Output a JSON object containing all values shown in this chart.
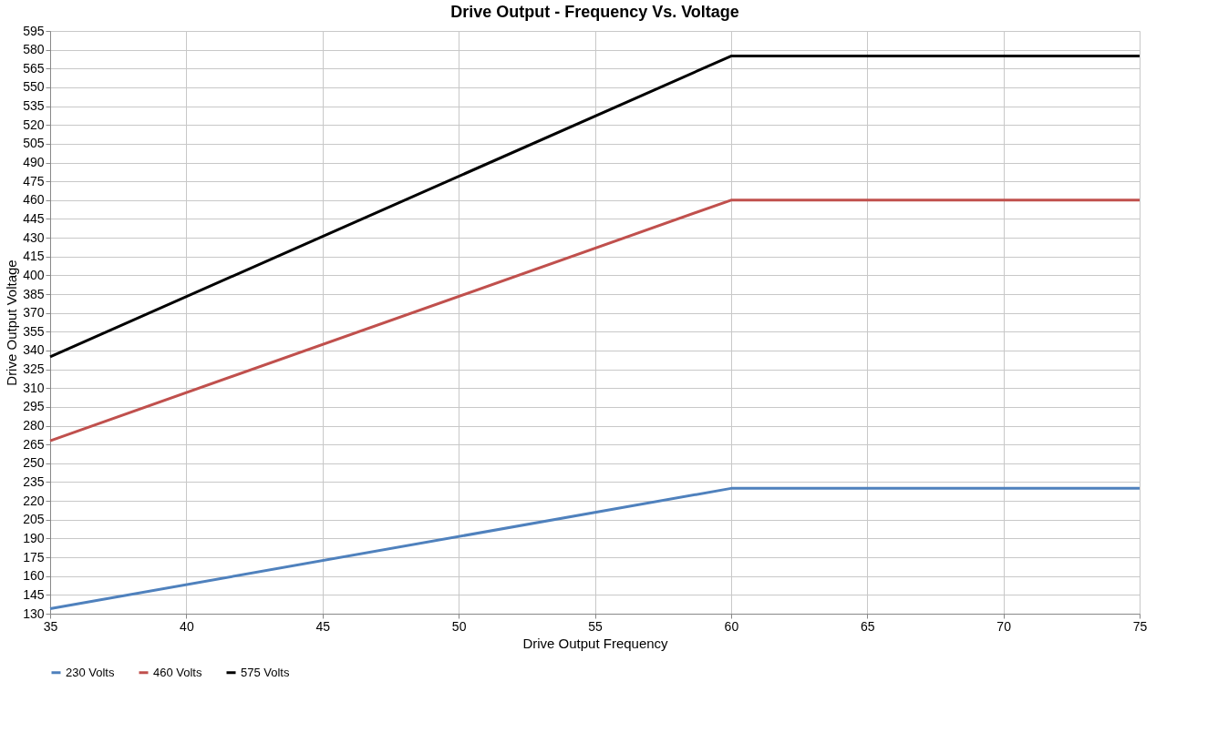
{
  "chart_data": {
    "type": "line",
    "title": "Drive Output - Frequency Vs. Voltage",
    "xlabel": "Drive Output Frequency",
    "ylabel": "Drive Output Voltage",
    "x": [
      35,
      60,
      75
    ],
    "series": [
      {
        "name": "230 Volts",
        "color": "#4f81bd",
        "values": [
          134,
          230,
          230
        ]
      },
      {
        "name": "460 Volts",
        "color": "#c0504d",
        "values": [
          268,
          460,
          460
        ]
      },
      {
        "name": "575 Volts",
        "color": "#000000",
        "values": [
          335,
          575,
          575
        ]
      }
    ],
    "xlim": [
      35,
      75
    ],
    "xticks": [
      35,
      40,
      45,
      50,
      55,
      60,
      65,
      70,
      75
    ],
    "ylim": [
      130,
      595
    ],
    "yticks": [
      130,
      145,
      160,
      175,
      190,
      205,
      220,
      235,
      250,
      265,
      280,
      295,
      310,
      325,
      340,
      355,
      370,
      385,
      400,
      415,
      430,
      445,
      460,
      475,
      490,
      505,
      520,
      535,
      550,
      565,
      580,
      595
    ],
    "grid": true,
    "legend": "bottom"
  }
}
